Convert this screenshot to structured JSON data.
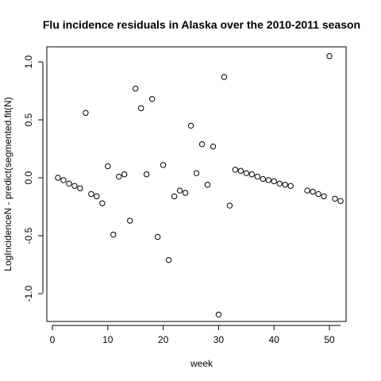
{
  "chart_data": {
    "type": "scatter",
    "title": "Flu incidence residuals in Alaska over the 2010-2011 season",
    "xlabel": "week",
    "ylabel": "LogIncidenceN - predict(segmented.fit(N)",
    "xlim": [
      0,
      52
    ],
    "ylim": [
      -1.25,
      1.1
    ],
    "xticks": [
      "0",
      "10",
      "20",
      "30",
      "40",
      "50"
    ],
    "yticks": [
      "-1.0",
      "-0.5",
      "0.0",
      "0.5",
      "1.0"
    ],
    "grid": false,
    "legend": "none",
    "marker": "open-circle",
    "x": [
      1,
      2,
      3,
      4,
      5,
      6,
      7,
      8,
      9,
      10,
      11,
      12,
      13,
      14,
      15,
      16,
      17,
      18,
      19,
      20,
      21,
      22,
      23,
      24,
      25,
      26,
      27,
      28,
      29,
      30,
      31,
      32,
      33,
      34,
      35,
      36,
      37,
      38,
      39,
      40,
      41,
      42,
      43,
      46,
      47,
      48,
      49,
      50,
      51,
      52
    ],
    "y": [
      0.0,
      -0.02,
      -0.05,
      -0.07,
      -0.09,
      0.56,
      -0.14,
      -0.16,
      -0.22,
      0.1,
      -0.49,
      0.01,
      0.03,
      -0.37,
      0.77,
      0.6,
      0.03,
      0.68,
      -0.51,
      0.11,
      -0.71,
      -0.16,
      -0.11,
      -0.13,
      0.45,
      0.04,
      0.29,
      -0.06,
      0.27,
      -1.18,
      0.87,
      -0.24,
      0.07,
      0.06,
      0.04,
      0.03,
      0.01,
      -0.01,
      -0.02,
      -0.03,
      -0.05,
      -0.06,
      -0.07,
      -0.11,
      -0.12,
      -0.14,
      -0.16,
      1.05,
      -0.18,
      -0.2
    ]
  }
}
